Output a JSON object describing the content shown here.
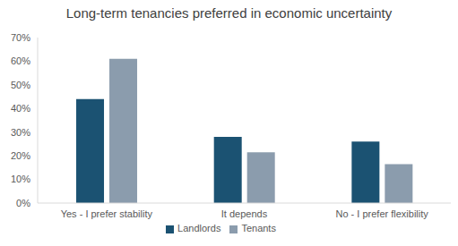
{
  "chart_data": {
    "type": "bar",
    "title": "Long-term tenancies preferred in economic uncertainty",
    "categories": [
      "Yes - I prefer stability",
      "It depends",
      "No - I prefer flexibility"
    ],
    "series": [
      {
        "name": "Landlords",
        "color": "#1b5272",
        "values": [
          44,
          28,
          26
        ]
      },
      {
        "name": "Tenants",
        "color": "#8b9cad",
        "values": [
          61,
          21.5,
          16.5
        ]
      }
    ],
    "ylim": [
      0,
      70
    ],
    "yticks": [
      {
        "value": 0,
        "label": "0%"
      },
      {
        "value": 10,
        "label": "10%"
      },
      {
        "value": 20,
        "label": "20%"
      },
      {
        "value": 30,
        "label": "30%"
      },
      {
        "value": 40,
        "label": "40%"
      },
      {
        "value": 50,
        "label": "50%"
      },
      {
        "value": 60,
        "label": "60%"
      },
      {
        "value": 70,
        "label": "70%"
      }
    ],
    "grid": false,
    "legend": "bottom"
  }
}
